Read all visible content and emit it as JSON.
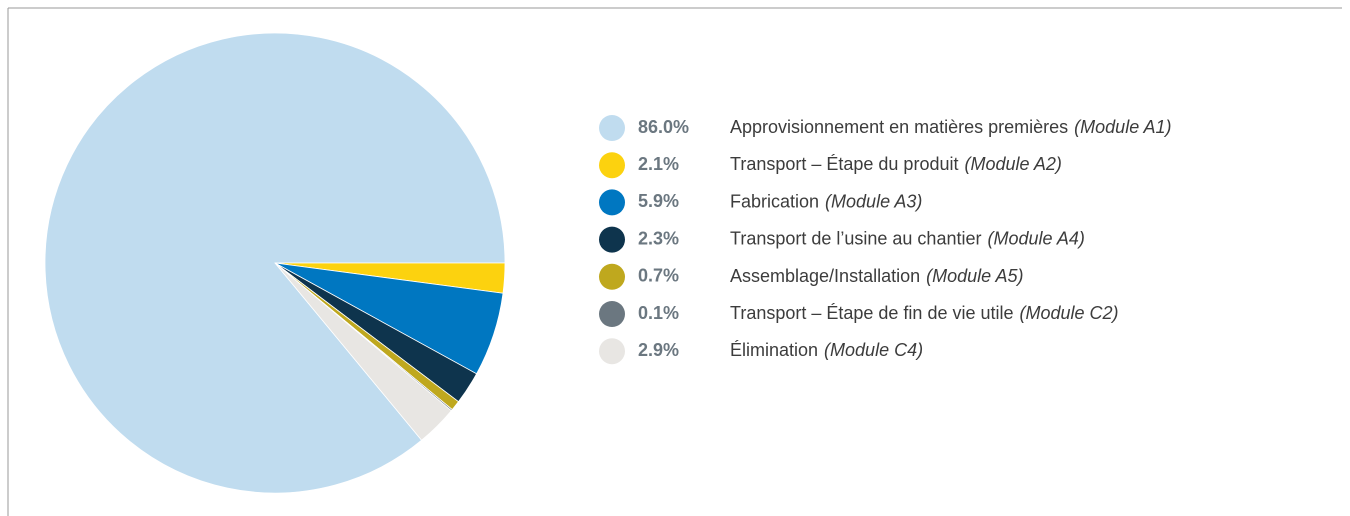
{
  "chart_data": {
    "type": "pie",
    "values": [
      86.0,
      2.1,
      5.9,
      2.3,
      0.7,
      0.1,
      2.9
    ],
    "value_labels": [
      "86.0%",
      "2.1%",
      "5.9%",
      "2.3%",
      "0.7%",
      "0.1%",
      "2.9%"
    ],
    "categories": [
      "Approvisionnement en matières premières",
      "Transport – Étape du produit",
      "Fabrication",
      "Transport de l’usine au chantier",
      "Assemblage/Installation",
      "Transport – Étape de fin de vie utile",
      "Élimination"
    ],
    "modules": [
      "(Module A1)",
      "(Module A2)",
      "(Module A3)",
      "(Module A4)",
      "(Module A5)",
      "(Module C2)",
      "(Module C4)"
    ],
    "colors": [
      "#c0dcef",
      "#fcd20f",
      "#0077c1",
      "#0e344d",
      "#bfa81e",
      "#6b7780",
      "#e8e6e3"
    ]
  }
}
